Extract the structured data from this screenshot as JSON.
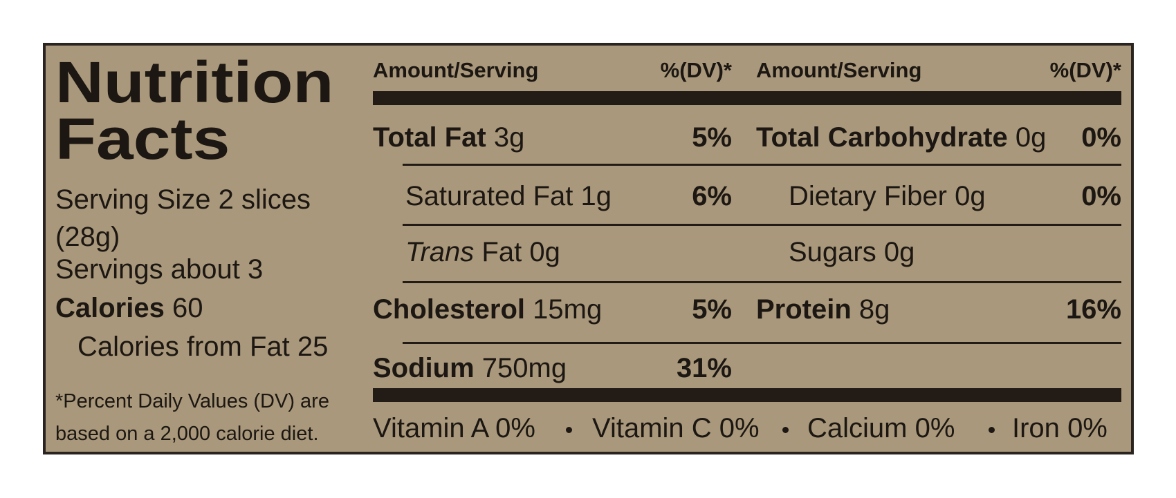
{
  "header": {
    "title": "Nutrition Facts",
    "serving_size": "Serving Size 2 slices (28g)",
    "servings": "Servings about 3",
    "calories_label": "Calories",
    "calories_value": "60",
    "calories_from_fat": "Calories from Fat 25",
    "footnote": "*Percent Daily Values (DV) are based on a 2,000 calorie diet."
  },
  "columns": {
    "left": {
      "amount_header": "Amount/Serving",
      "dv_header": "%(DV)*"
    },
    "right": {
      "amount_header": "Amount/Serving",
      "dv_header": "%(DV)*"
    }
  },
  "left_rows": [
    {
      "name": "Total Fat",
      "amount": "3g",
      "dv": "5%"
    },
    {
      "name": "Saturated Fat",
      "amount": "1g",
      "dv": "6%"
    },
    {
      "italic": "Trans",
      "name": "Fat",
      "amount": "0g"
    },
    {
      "name": "Cholesterol",
      "amount": "15mg",
      "dv": "5%"
    },
    {
      "name": "Sodium",
      "amount": "750mg",
      "dv": "31%"
    }
  ],
  "right_rows": [
    {
      "name": "Total Carbohydrate",
      "amount": "0g",
      "dv": "0%"
    },
    {
      "name": "Dietary Fiber",
      "amount": "0g",
      "dv": "0%"
    },
    {
      "name": "Sugars",
      "amount": "0g"
    },
    {
      "name": "Protein",
      "amount": "8g",
      "dv": "16%"
    }
  ],
  "vitamins": [
    {
      "name": "Vitamin A",
      "dv": "0%"
    },
    {
      "name": "Vitamin C",
      "dv": "0%"
    },
    {
      "name": "Calcium",
      "dv": "0%"
    },
    {
      "name": "Iron",
      "dv": "0%"
    }
  ]
}
